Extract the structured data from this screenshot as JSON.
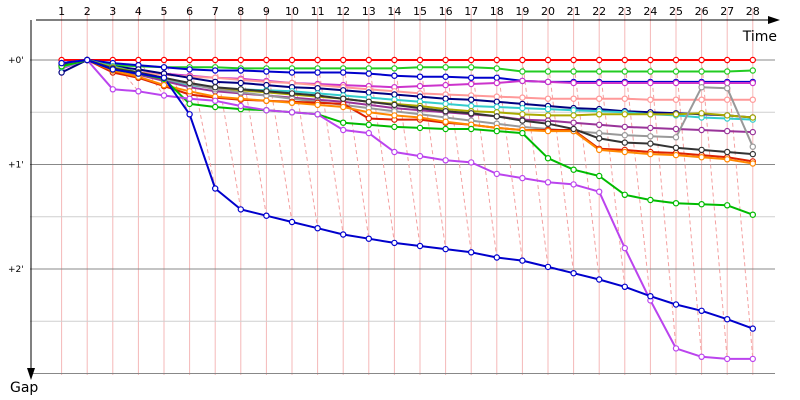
{
  "chart_data": {
    "type": "line",
    "x_axis_label": "Time",
    "y_axis_label": "Gap",
    "x_ticks": [
      "1",
      "2",
      "3",
      "4",
      "5",
      "6",
      "7",
      "8",
      "9",
      "10",
      "11",
      "12",
      "13",
      "14",
      "15",
      "16",
      "17",
      "18",
      "19",
      "20",
      "21",
      "22",
      "23",
      "24",
      "25",
      "26",
      "27",
      "28"
    ],
    "y_ticks": [
      "+0'",
      "+1'",
      "+2'"
    ],
    "ylim_minutes": [
      0,
      3.0
    ],
    "grid": true,
    "series": [
      {
        "color": "#ff0000",
        "values": [
          0.0,
          0.0,
          0.0,
          0.0,
          0.0,
          0.0,
          0.0,
          0.0,
          0.0,
          0.0,
          0.0,
          0.0,
          0.0,
          0.0,
          0.0,
          0.0,
          0.0,
          0.0,
          0.0,
          0.0,
          0.0,
          0.0,
          0.0,
          0.0,
          0.0,
          0.0,
          0.0,
          0.0
        ]
      },
      {
        "color": "#22cc22",
        "values": [
          0.03,
          0.0,
          0.05,
          0.06,
          0.07,
          0.07,
          0.07,
          0.08,
          0.08,
          0.08,
          0.08,
          0.08,
          0.08,
          0.08,
          0.07,
          0.07,
          0.07,
          0.08,
          0.11,
          0.11,
          0.11,
          0.11,
          0.11,
          0.11,
          0.11,
          0.11,
          0.11,
          0.1
        ]
      },
      {
        "color": "#0000cc",
        "values": [
          0.03,
          0.0,
          0.03,
          0.05,
          0.07,
          0.09,
          0.1,
          0.1,
          0.11,
          0.12,
          0.12,
          0.12,
          0.13,
          0.15,
          0.16,
          0.16,
          0.17,
          0.17,
          0.2,
          0.21,
          0.21,
          0.21,
          0.21,
          0.21,
          0.21,
          0.21,
          0.21,
          0.21
        ]
      },
      {
        "color": "#cc33cc",
        "values": [
          0.08,
          0.0,
          0.09,
          0.12,
          0.13,
          0.15,
          0.17,
          0.18,
          0.2,
          0.22,
          0.23,
          0.24,
          0.25,
          0.26,
          0.25,
          0.24,
          0.23,
          0.22,
          0.2,
          0.21,
          0.22,
          0.22,
          0.22,
          0.22,
          0.22,
          0.22,
          0.22,
          0.22
        ]
      },
      {
        "color": "#ff9999",
        "values": [
          0.05,
          0.0,
          0.1,
          0.12,
          0.14,
          0.16,
          0.17,
          0.19,
          0.21,
          0.22,
          0.24,
          0.26,
          0.28,
          0.3,
          0.32,
          0.33,
          0.34,
          0.35,
          0.36,
          0.37,
          0.37,
          0.37,
          0.37,
          0.38,
          0.38,
          0.38,
          0.38,
          0.38
        ]
      },
      {
        "color": "#000080",
        "values": [
          0.12,
          0.0,
          0.06,
          0.09,
          0.13,
          0.17,
          0.21,
          0.22,
          0.24,
          0.26,
          0.27,
          0.29,
          0.31,
          0.33,
          0.35,
          0.37,
          0.38,
          0.4,
          0.42,
          0.44,
          0.46,
          0.47,
          0.49,
          0.5,
          0.51,
          0.52,
          0.53,
          0.55
        ]
      },
      {
        "color": "#33cccc",
        "values": [
          0.07,
          0.0,
          0.06,
          0.12,
          0.2,
          0.24,
          0.27,
          0.28,
          0.29,
          0.3,
          0.32,
          0.34,
          0.36,
          0.38,
          0.4,
          0.42,
          0.44,
          0.45,
          0.46,
          0.47,
          0.48,
          0.49,
          0.5,
          0.52,
          0.53,
          0.55,
          0.56,
          0.57
        ]
      },
      {
        "color": "#aaaa00",
        "values": [
          0.06,
          0.0,
          0.07,
          0.12,
          0.17,
          0.23,
          0.27,
          0.29,
          0.31,
          0.33,
          0.35,
          0.37,
          0.4,
          0.42,
          0.44,
          0.47,
          0.49,
          0.5,
          0.52,
          0.53,
          0.53,
          0.52,
          0.52,
          0.52,
          0.52,
          0.51,
          0.53,
          0.55
        ]
      },
      {
        "color": "#993399",
        "values": [
          0.05,
          0.0,
          0.1,
          0.14,
          0.2,
          0.26,
          0.3,
          0.32,
          0.34,
          0.36,
          0.38,
          0.4,
          0.43,
          0.46,
          0.48,
          0.5,
          0.52,
          0.54,
          0.57,
          0.58,
          0.6,
          0.62,
          0.64,
          0.65,
          0.66,
          0.67,
          0.68,
          0.69
        ]
      },
      {
        "color": "#999999",
        "values": [
          0.04,
          0.0,
          0.08,
          0.13,
          0.18,
          0.23,
          0.28,
          0.31,
          0.34,
          0.37,
          0.4,
          0.43,
          0.46,
          0.49,
          0.52,
          0.55,
          0.58,
          0.61,
          0.64,
          0.66,
          0.68,
          0.7,
          0.72,
          0.73,
          0.74,
          0.26,
          0.27,
          0.83
        ]
      },
      {
        "color": "#dd2200",
        "values": [
          0.05,
          0.0,
          0.12,
          0.17,
          0.25,
          0.33,
          0.36,
          0.38,
          0.39,
          0.4,
          0.41,
          0.42,
          0.56,
          0.57,
          0.57,
          0.6,
          0.62,
          0.65,
          0.67,
          0.67,
          0.67,
          0.85,
          0.86,
          0.88,
          0.89,
          0.91,
          0.93,
          0.97
        ]
      },
      {
        "color": "#ff8800",
        "values": [
          0.06,
          0.0,
          0.1,
          0.16,
          0.24,
          0.3,
          0.35,
          0.37,
          0.39,
          0.41,
          0.43,
          0.45,
          0.5,
          0.53,
          0.55,
          0.59,
          0.62,
          0.65,
          0.67,
          0.68,
          0.68,
          0.86,
          0.88,
          0.9,
          0.91,
          0.93,
          0.95,
          0.99
        ]
      },
      {
        "color": "#333333",
        "values": [
          0.05,
          0.0,
          0.08,
          0.12,
          0.17,
          0.22,
          0.26,
          0.28,
          0.3,
          0.32,
          0.34,
          0.37,
          0.4,
          0.43,
          0.46,
          0.49,
          0.51,
          0.54,
          0.58,
          0.61,
          0.66,
          0.75,
          0.79,
          0.8,
          0.84,
          0.86,
          0.88,
          0.9
        ]
      },
      {
        "color": "#00bb00",
        "values": [
          0.06,
          0.0,
          0.09,
          0.13,
          0.18,
          0.42,
          0.45,
          0.47,
          0.48,
          0.5,
          0.52,
          0.6,
          0.62,
          0.64,
          0.65,
          0.66,
          0.66,
          0.68,
          0.7,
          0.94,
          1.05,
          1.11,
          1.29,
          1.34,
          1.37,
          1.38,
          1.39,
          1.48
        ]
      },
      {
        "color": "#bb44ee",
        "values": [
          0.03,
          0.0,
          0.28,
          0.3,
          0.34,
          0.37,
          0.39,
          0.44,
          0.48,
          0.5,
          0.52,
          0.67,
          0.7,
          0.88,
          0.92,
          0.96,
          0.98,
          1.09,
          1.13,
          1.17,
          1.19,
          1.26,
          1.8,
          2.3,
          2.76,
          2.84,
          2.86,
          2.86
        ]
      },
      {
        "color": "#0000cc",
        "values": [
          0.03,
          0.0,
          0.09,
          0.13,
          0.17,
          0.52,
          1.23,
          1.43,
          1.49,
          1.55,
          1.61,
          1.67,
          1.71,
          1.75,
          1.78,
          1.81,
          1.84,
          1.89,
          1.92,
          1.98,
          2.04,
          2.1,
          2.17,
          2.26,
          2.34,
          2.4,
          2.48,
          2.57
        ]
      }
    ]
  }
}
